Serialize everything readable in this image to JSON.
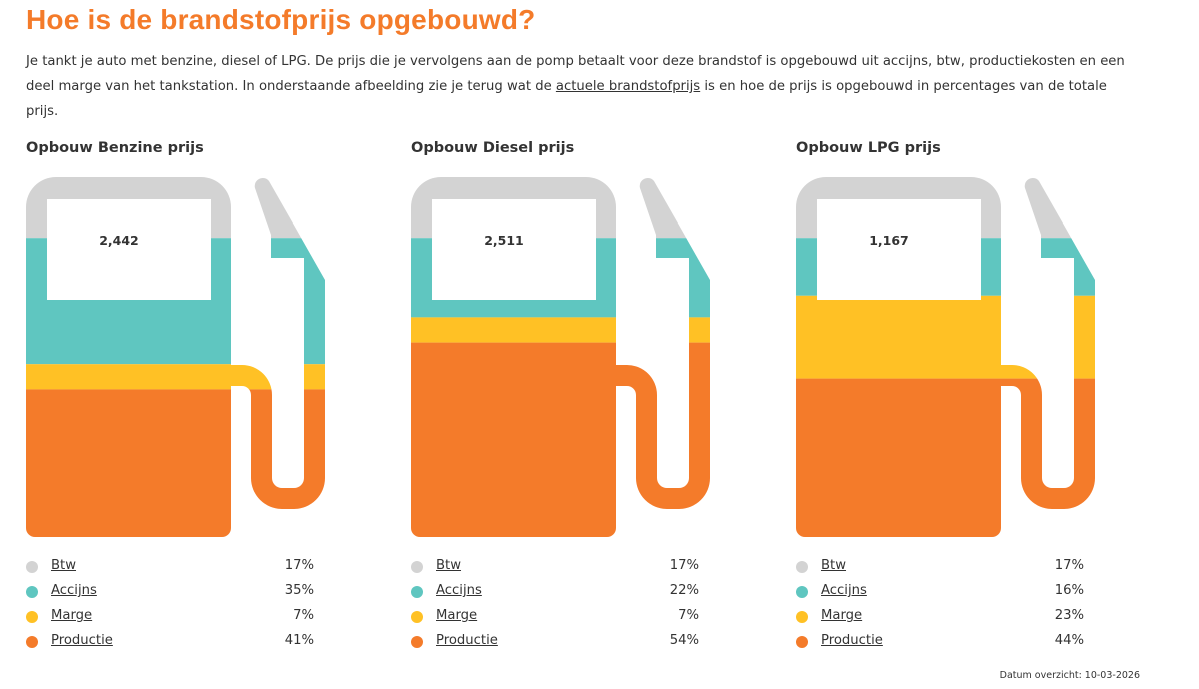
{
  "title": "Hoe is de brandstofprijs opgebouwd?",
  "intro": {
    "text_before": "Je tankt je auto met benzine, diesel of LPG. De prijs die je vervolgens aan de pomp betaalt voor deze brandstof is opgebouwd uit accijns, btw, productiekosten en een deel marge van het tankstation. In onderstaande afbeelding zie je terug wat de ",
    "link": "actuele brandstofprijs",
    "text_after": " is en hoe de prijs is opgebouwd in percentages van de totale prijs."
  },
  "colors": {
    "title": "#f47b2a",
    "Btw": "#d3d3d3",
    "Accijns": "#5fc6c0",
    "Marge": "#ffc125",
    "Productie": "#f47b2a"
  },
  "chart_data": [
    {
      "type": "bar",
      "title": "Opbouw Benzine prijs",
      "price": "2,442",
      "categories": [
        "Btw",
        "Accijns",
        "Marge",
        "Productie"
      ],
      "values": [
        17,
        35,
        7,
        41
      ],
      "labels": [
        "17%",
        "35%",
        "7%",
        "41%"
      ]
    },
    {
      "type": "bar",
      "title": "Opbouw Diesel prijs",
      "price": "2,511",
      "categories": [
        "Btw",
        "Accijns",
        "Marge",
        "Productie"
      ],
      "values": [
        17,
        22,
        7,
        54
      ],
      "labels": [
        "17%",
        "22%",
        "7%",
        "54%"
      ]
    },
    {
      "type": "bar",
      "title": "Opbouw LPG prijs",
      "price": "1,167",
      "categories": [
        "Btw",
        "Accijns",
        "Marge",
        "Productie"
      ],
      "values": [
        17,
        16,
        23,
        44
      ],
      "labels": [
        "17%",
        "16%",
        "23%",
        "44%"
      ]
    }
  ],
  "date": {
    "label": "Datum overzicht:",
    "value": "10-03-2026"
  }
}
